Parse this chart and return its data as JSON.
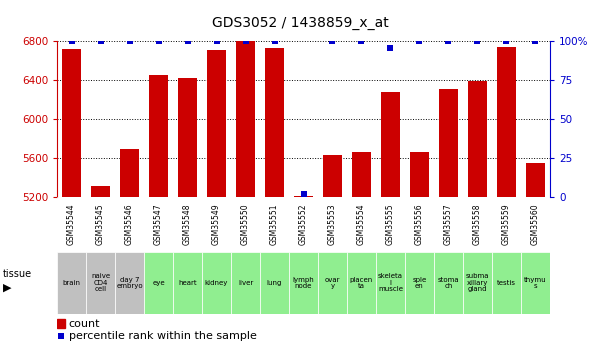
{
  "title": "GDS3052 / 1438859_x_at",
  "gsm_labels": [
    "GSM35544",
    "GSM35545",
    "GSM35546",
    "GSM35547",
    "GSM35548",
    "GSM35549",
    "GSM35550",
    "GSM35551",
    "GSM35552",
    "GSM35553",
    "GSM35554",
    "GSM35555",
    "GSM35556",
    "GSM35557",
    "GSM35558",
    "GSM35559",
    "GSM35560"
  ],
  "tissue_labels": [
    "brain",
    "naive\nCD4\ncell",
    "day 7\nembryо",
    "eye",
    "heart",
    "kidney",
    "liver",
    "lung",
    "lymph\nnode",
    "ovar\ny",
    "placen\nta",
    "skeleta\nl\nmuscle",
    "sple\nen",
    "stoma\nch",
    "subma\nxillary\ngland",
    "testis",
    "thymu\ns"
  ],
  "tissue_colors": [
    "#c0c0c0",
    "#c0c0c0",
    "#c0c0c0",
    "#90ee90",
    "#90ee90",
    "#90ee90",
    "#90ee90",
    "#90ee90",
    "#90ee90",
    "#90ee90",
    "#90ee90",
    "#90ee90",
    "#90ee90",
    "#90ee90",
    "#90ee90",
    "#90ee90",
    "#90ee90"
  ],
  "counts": [
    6720,
    5310,
    5690,
    6450,
    6420,
    6710,
    6800,
    6730,
    5210,
    5630,
    5660,
    6280,
    5660,
    6310,
    6390,
    6740,
    5550
  ],
  "percentiles": [
    100,
    100,
    100,
    100,
    100,
    100,
    100,
    100,
    2,
    100,
    100,
    96,
    100,
    100,
    100,
    100,
    100
  ],
  "ylim_left": [
    5200,
    6800
  ],
  "ylim_right": [
    0,
    100
  ],
  "yticks_left": [
    5200,
    5600,
    6000,
    6400,
    6800
  ],
  "yticks_right": [
    0,
    25,
    50,
    75,
    100
  ],
  "ytick_labels_right": [
    "0",
    "25",
    "50",
    "75",
    "100%"
  ],
  "bar_color": "#cc0000",
  "dot_color": "#0000cc",
  "grid_color": "#000000",
  "bg_color": "#ffffff",
  "axis_color_left": "#cc0000",
  "axis_color_right": "#0000cc",
  "gsm_bg_color": "#d0d0d0"
}
